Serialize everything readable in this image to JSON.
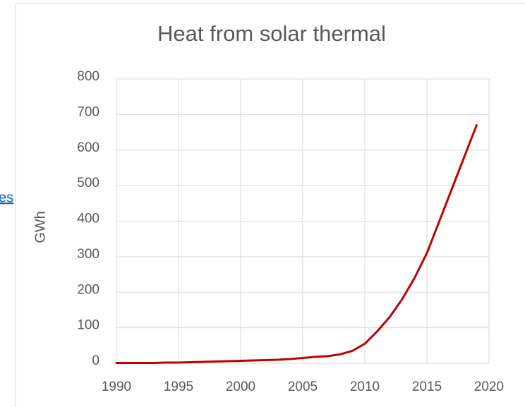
{
  "page": {
    "link_text": "es"
  },
  "chart_data": {
    "type": "line",
    "title": "Heat from solar thermal",
    "y_label": "GWh",
    "x": [
      1990,
      1991,
      1992,
      1993,
      1994,
      1995,
      1996,
      1997,
      1998,
      1999,
      2000,
      2001,
      2002,
      2003,
      2004,
      2005,
      2006,
      2007,
      2008,
      2009,
      2010,
      2011,
      2012,
      2013,
      2014,
      2015,
      2016,
      2017,
      2018,
      2019
    ],
    "series": [
      {
        "name": "Heat from solar thermal",
        "color": "#c00000",
        "values": [
          1,
          1,
          1,
          1,
          2,
          2,
          3,
          4,
          5,
          6,
          7,
          8,
          9,
          10,
          12,
          15,
          18,
          20,
          25,
          35,
          55,
          90,
          130,
          180,
          240,
          310,
          400,
          490,
          580,
          670
        ]
      }
    ],
    "xlim": [
      1990,
      2020
    ],
    "xticks": [
      1990,
      1995,
      2000,
      2005,
      2010,
      2015,
      2020
    ],
    "ylim": [
      0,
      800
    ],
    "yticks": [
      0,
      100,
      200,
      300,
      400,
      500,
      600,
      700,
      800
    ],
    "grid": true
  }
}
